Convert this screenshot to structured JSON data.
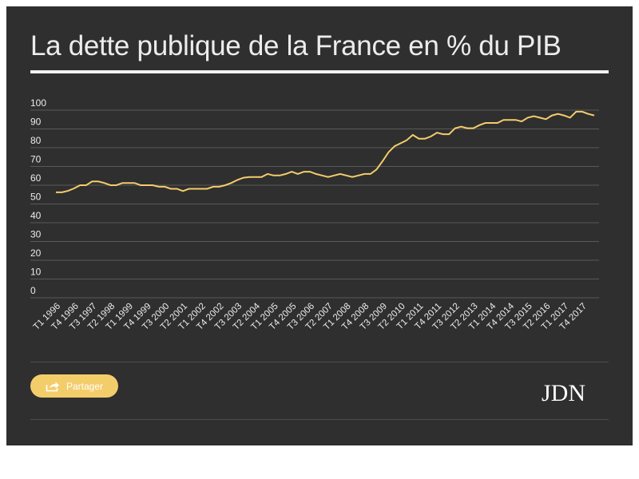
{
  "page": {
    "title": "La dette publique de la France en % du PIB",
    "share_label": "Partager",
    "logo_text": "JDN"
  },
  "colors": {
    "background": "#2f2f2f",
    "line": "#f4cd6b",
    "text": "#ececec",
    "grid": "#595959",
    "accent": "#f4cd6b"
  },
  "icons": {
    "share": "share-icon"
  },
  "chart_data": {
    "type": "line",
    "title": "",
    "xlabel": "",
    "ylabel": "",
    "ylim": [
      0,
      100
    ],
    "yticks": [
      0,
      10,
      20,
      30,
      40,
      50,
      60,
      70,
      80,
      90,
      100
    ],
    "grid": true,
    "legend": "none",
    "x_tick_labels": [
      "T1 1996",
      "T4 1996",
      "T3 1997",
      "T2 1998",
      "T1 1999",
      "T4 1999",
      "T3 2000",
      "T2 2001",
      "T1 2002",
      "T4 2002",
      "T3 2003",
      "T2 2004",
      "T1 2005",
      "T4 2005",
      "T3 2006",
      "T2 2007",
      "T1 2008",
      "T4 2008",
      "T3 2009",
      "T2 2010",
      "T1 2011",
      "T4 2011",
      "T3 2012",
      "T2 2013",
      "T1 2014",
      "T4 2014",
      "T3 2015",
      "T2 2016",
      "T1 2017",
      "T4 2017"
    ],
    "series": [
      {
        "values": [
          56.2,
          56.2,
          57.0,
          58.3,
          60.0,
          60.0,
          62.0,
          62.0,
          61.2,
          60.0,
          60.0,
          61.2,
          61.2,
          61.2,
          60.0,
          60.0,
          60.0,
          59.2,
          59.2,
          58.1,
          58.1,
          56.9,
          58.1,
          58.1,
          58.1,
          58.1,
          59.2,
          59.2,
          60.0,
          61.2,
          62.8,
          64.0,
          64.4,
          64.4,
          64.4,
          66.0,
          65.2,
          65.2,
          66.0,
          67.2,
          66.0,
          67.2,
          67.2,
          66.0,
          65.2,
          64.4,
          65.2,
          66.0,
          65.2,
          64.4,
          65.2,
          66.0,
          66.0,
          68.4,
          72.8,
          77.6,
          80.8,
          82.4,
          84.0,
          86.8,
          84.8,
          84.8,
          86.0,
          88.0,
          87.2,
          87.2,
          90.4,
          91.2,
          90.4,
          90.4,
          92.0,
          93.2,
          93.2,
          93.2,
          94.8,
          94.8,
          94.8,
          94.0,
          96.0,
          96.8,
          96.0,
          95.2,
          97.2,
          98.0,
          97.2,
          96.0,
          99.2,
          99.2,
          98.0,
          97.2
        ]
      }
    ]
  }
}
